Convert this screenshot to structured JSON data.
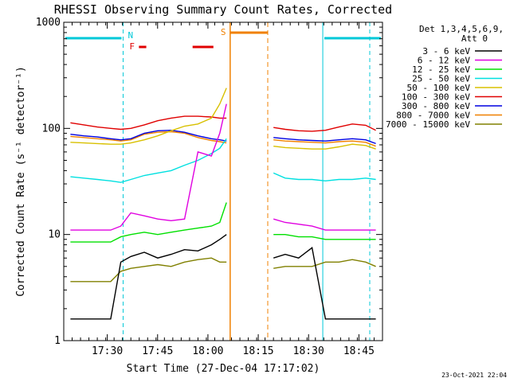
{
  "chart_data": {
    "type": "line",
    "title": "RHESSI Observing Summary Count Rates, Corrected",
    "xlabel": "Start Time (27-Dec-04 17:17:02)",
    "ylabel": "Corrected Count Rate (s⁻¹ detector⁻¹)",
    "y_scale": "log",
    "ylim": [
      1,
      1000
    ],
    "y_ticks": [
      1,
      10,
      100,
      1000
    ],
    "y_tick_labels": [
      "1",
      "10",
      "100",
      "1000"
    ],
    "xlim_minutes": [
      0,
      95
    ],
    "x_ticks_minutes": [
      12.97,
      27.97,
      42.97,
      57.97,
      72.97,
      87.97
    ],
    "x_tick_labels": [
      "17:30",
      "17:45",
      "18:00",
      "18:15",
      "18:30",
      "18:45"
    ],
    "grid": false,
    "legend": {
      "placement": "right",
      "header_line1": "Det 1,3,4,5,6,9,",
      "header_line2": "Att 0"
    },
    "flags": {
      "N_label": "N",
      "N_color": "#00c8d8",
      "F_label": "F",
      "F_color": "#e00000",
      "S_label": "S",
      "S_color": "#f08000"
    },
    "night_windows_minutes": [
      [
        0,
        17.7
      ],
      [
        77.2,
        95
      ]
    ],
    "saa_window_minutes": [
      49.6,
      60.8
    ],
    "flare_intervals_minutes": [
      [
        22.4,
        24.6
      ],
      [
        38.4,
        44.6
      ]
    ],
    "x_sample_minutes": [
      2,
      6,
      10,
      14,
      17,
      20,
      24,
      28,
      32,
      36,
      40,
      44,
      46.5,
      48.5,
      62.5,
      66,
      70,
      74,
      78,
      82,
      86,
      90,
      93
    ],
    "series": [
      {
        "name": "3 - 6 keV",
        "color": "#000000",
        "values": [
          1.6,
          1.6,
          1.6,
          1.6,
          5.5,
          6.2,
          6.8,
          6.0,
          6.5,
          7.2,
          7.0,
          8.0,
          9.0,
          10.0,
          6.0,
          6.5,
          6.0,
          7.5,
          1.6,
          1.6,
          1.6,
          1.6,
          1.6
        ]
      },
      {
        "name": "6 - 12 keV",
        "color": "#e000e0",
        "values": [
          11,
          11,
          11,
          11,
          12,
          16,
          15,
          14,
          13.5,
          14,
          60,
          55,
          90,
          170,
          14,
          13,
          12.5,
          12,
          11,
          11,
          11,
          11,
          11
        ]
      },
      {
        "name": "12 - 25 keV",
        "color": "#00e000",
        "values": [
          8.5,
          8.5,
          8.5,
          8.5,
          9.5,
          10,
          10.5,
          10,
          10.5,
          11,
          11.5,
          12,
          13,
          20,
          10,
          10,
          9.5,
          9.5,
          9.0,
          9.0,
          9.0,
          9.0,
          9.0
        ]
      },
      {
        "name": "25 - 50 keV",
        "color": "#00e0e0",
        "values": [
          35,
          34,
          33,
          32,
          31,
          33,
          36,
          38,
          40,
          45,
          50,
          58,
          65,
          80,
          38,
          34,
          33,
          33,
          32,
          33,
          33,
          34,
          33
        ]
      },
      {
        "name": "50 - 100 keV",
        "color": "#d8c000",
        "values": [
          74,
          73,
          72,
          71,
          71,
          73,
          78,
          85,
          95,
          105,
          110,
          125,
          170,
          240,
          68,
          66,
          65,
          64,
          64,
          67,
          71,
          69,
          64
        ]
      },
      {
        "name": "100 - 300 keV",
        "color": "#e00000",
        "values": [
          113,
          108,
          103,
          100,
          98,
          100,
          108,
          118,
          125,
          130,
          130,
          128,
          125,
          125,
          102,
          98,
          95,
          94,
          96,
          103,
          110,
          107,
          96
        ]
      },
      {
        "name": "300 - 800 keV",
        "color": "#0000e0",
        "values": [
          88,
          85,
          83,
          80,
          78,
          80,
          90,
          95,
          96,
          92,
          85,
          80,
          78,
          76,
          82,
          80,
          78,
          77,
          76,
          78,
          80,
          78,
          72
        ]
      },
      {
        "name": "800 - 7000 keV",
        "color": "#f08000",
        "values": [
          84,
          82,
          80,
          78,
          76,
          78,
          88,
          92,
          93,
          90,
          82,
          77,
          75,
          73,
          78,
          76,
          75,
          74,
          73,
          75,
          76,
          74,
          68
        ]
      },
      {
        "name": "7000 - 15000 keV",
        "color": "#808000",
        "values": [
          3.6,
          3.6,
          3.6,
          3.6,
          4.5,
          4.8,
          5.0,
          5.2,
          5.0,
          5.5,
          5.8,
          6.0,
          5.5,
          5.5,
          4.8,
          5.0,
          5.0,
          5.0,
          5.5,
          5.5,
          5.8,
          5.5,
          5.0
        ]
      }
    ],
    "timestamp": "23-Oct-2021 22:04"
  }
}
